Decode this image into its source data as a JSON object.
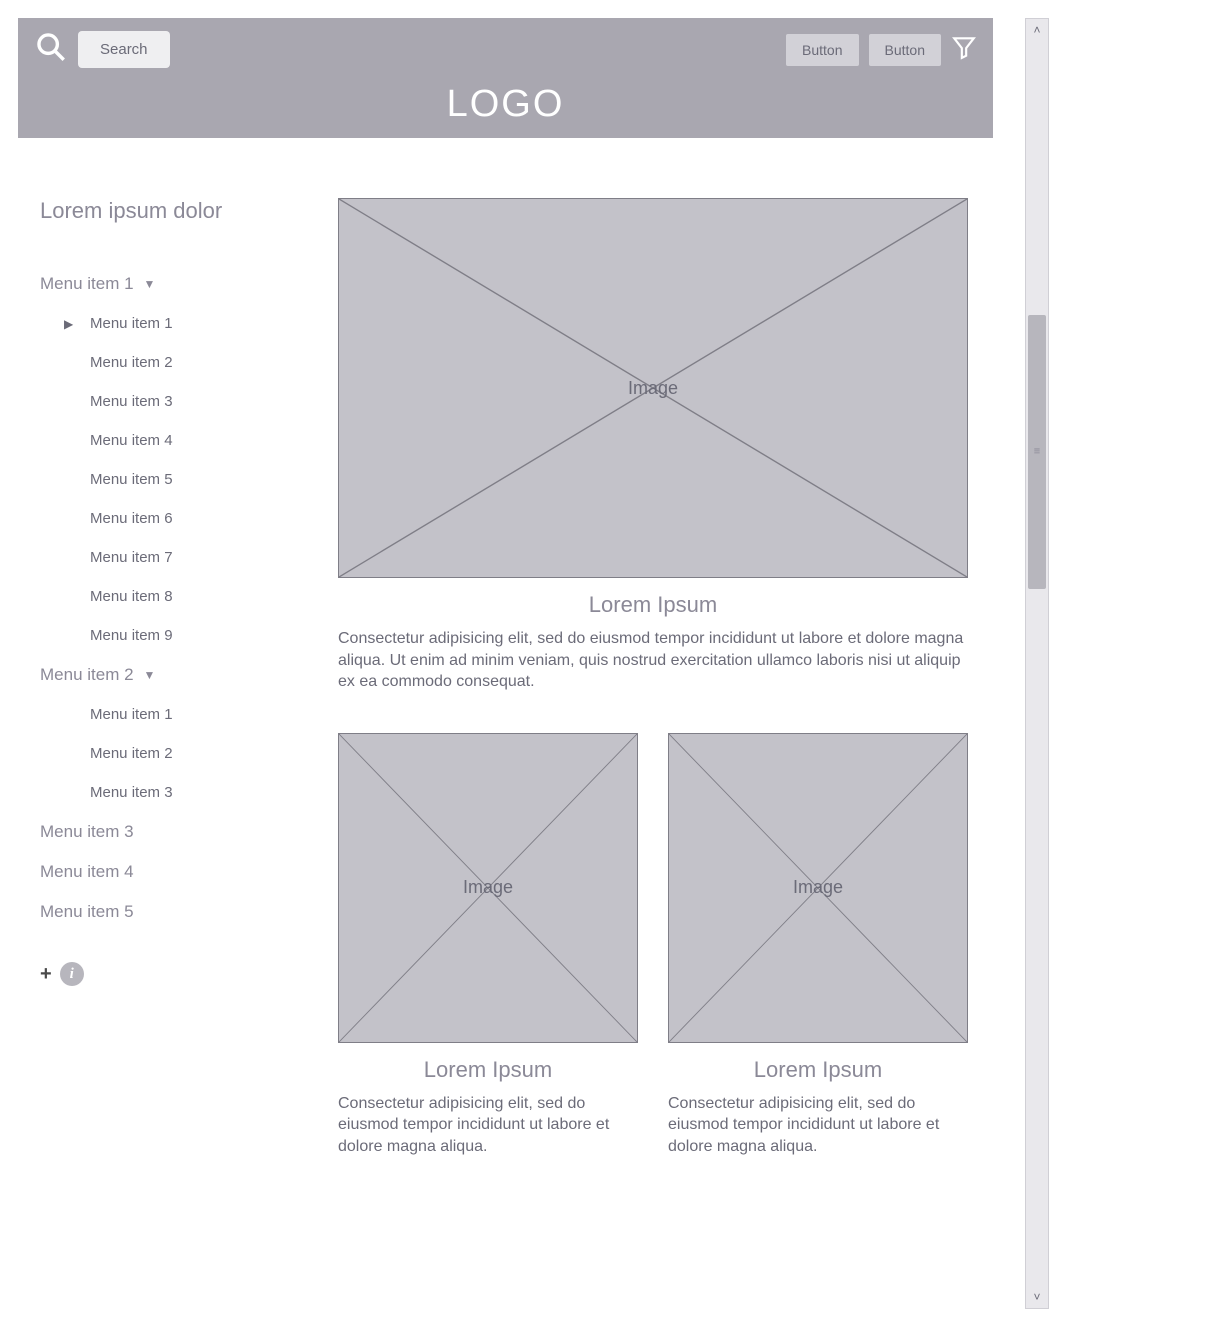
{
  "colors": {
    "header_bg": "#a9a7b0",
    "placeholder_bg": "#c3c2c9",
    "placeholder_border": "#7f7e87",
    "text_muted": "#8b8997",
    "text_body": "#6b6b78",
    "scroll_track": "#e9e8ec",
    "scroll_thumb": "#b7b6bd"
  },
  "header": {
    "search_label": "Search",
    "button1_label": "Button",
    "button2_label": "Button",
    "logo_text": "LOGO"
  },
  "sidebar": {
    "title": "Lorem ipsum dolor",
    "menus": [
      {
        "label": "Menu item 1",
        "expanded": true,
        "children": [
          {
            "label": "Menu item 1",
            "has_children": true
          },
          {
            "label": "Menu item 2"
          },
          {
            "label": "Menu item 3"
          },
          {
            "label": "Menu item 4"
          },
          {
            "label": "Menu item 5"
          },
          {
            "label": "Menu item 6"
          },
          {
            "label": "Menu item 7"
          },
          {
            "label": "Menu item 8"
          },
          {
            "label": "Menu item 9"
          }
        ]
      },
      {
        "label": "Menu item 2",
        "expanded": true,
        "children": [
          {
            "label": "Menu item 1"
          },
          {
            "label": "Menu item 2"
          },
          {
            "label": "Menu item 3"
          }
        ]
      },
      {
        "label": "Menu item 3"
      },
      {
        "label": "Menu item 4"
      },
      {
        "label": "Menu item 5"
      }
    ]
  },
  "main": {
    "image_label": "Image",
    "hero": {
      "title": "Lorem Ipsum",
      "text": "Consectetur adipisicing elit, sed do eiusmod tempor incididunt ut labore et dolore magna aliqua. Ut enim ad minim veniam, quis nostrud exercitation ullamco laboris nisi ut aliquip ex ea commodo consequat."
    },
    "cards": [
      {
        "title": "Lorem Ipsum",
        "text": "Consectetur adipisicing elit, sed do eiusmod tempor incididunt ut labore et dolore magna aliqua."
      },
      {
        "title": "Lorem Ipsum",
        "text": "Consectetur adipisicing elit, sed do eiusmod tempor incididunt ut labore et dolore magna aliqua."
      }
    ]
  },
  "scrollbar": {
    "thumb_top_pct": 22,
    "thumb_height_pct": 22,
    "grip_glyph": "≡"
  }
}
